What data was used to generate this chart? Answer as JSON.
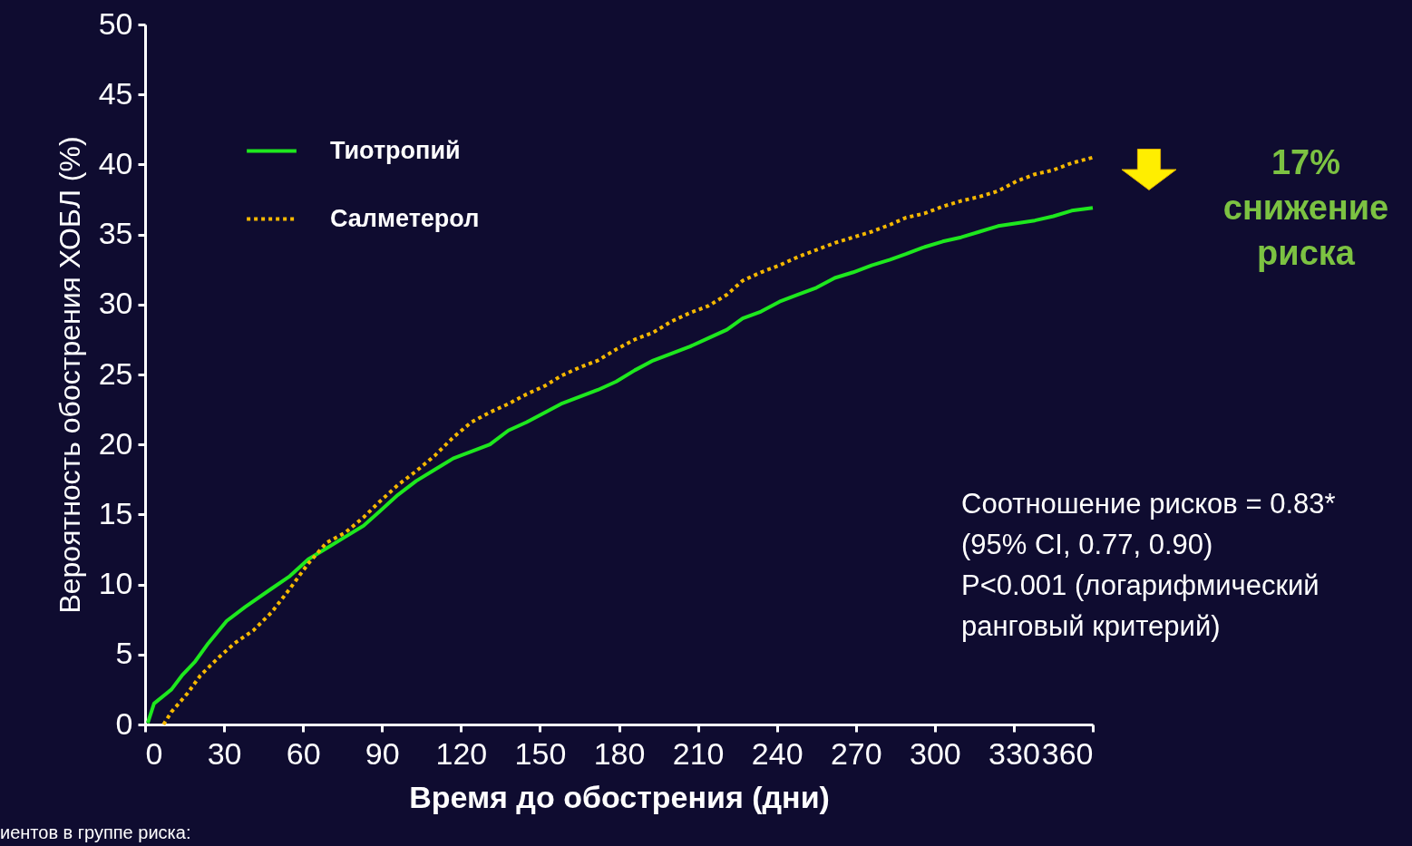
{
  "chart_data": {
    "type": "line",
    "xlabel": "Время до обострения (дни)",
    "ylabel": "Вероятность обострения ХОБЛ (%)",
    "xlim": [
      0,
      360
    ],
    "xticks": [
      0,
      30,
      60,
      90,
      120,
      150,
      180,
      210,
      240,
      270,
      300,
      330,
      360
    ],
    "ylim": [
      0,
      50
    ],
    "yticks": [
      0,
      5,
      10,
      15,
      20,
      25,
      30,
      35,
      40,
      45,
      50
    ],
    "grid": false,
    "legend": "top left",
    "marker": "none",
    "series": [
      {
        "name": "Тиотропий",
        "color": "#1ee81e",
        "line_style": "solid",
        "x": [
          1,
          3.4,
          10,
          14,
          19,
          24,
          31,
          38,
          48,
          55,
          62,
          69,
          76,
          83,
          89,
          96,
          103,
          110,
          117,
          124,
          131,
          138,
          145,
          152,
          158,
          165,
          172,
          179,
          186,
          193,
          200,
          207,
          214,
          221,
          227,
          234,
          241,
          248,
          255,
          262,
          269,
          276,
          283,
          289,
          296,
          303,
          310,
          317,
          324,
          331,
          338,
          345,
          352,
          360
        ],
        "values": [
          0.1,
          1.5,
          2.5,
          3.5,
          4.5,
          5.8,
          7.4,
          8.4,
          9.7,
          10.6,
          11.8,
          12.6,
          13.4,
          14.2,
          15.2,
          16.4,
          17.4,
          18.2,
          19.0,
          19.5,
          20.0,
          21.0,
          21.6,
          22.3,
          22.9,
          23.4,
          23.9,
          24.5,
          25.3,
          26.0,
          26.5,
          27.0,
          27.6,
          28.2,
          29.0,
          29.5,
          30.2,
          30.7,
          31.2,
          31.9,
          32.3,
          32.8,
          33.2,
          33.6,
          34.1,
          34.5,
          34.8,
          35.2,
          35.6,
          35.8,
          36.0,
          36.3,
          36.7,
          36.9
        ]
      },
      {
        "name": "Салметерол",
        "color": "#f5b800",
        "line_style": "dotted",
        "x": [
          7,
          10,
          16,
          21,
          28,
          34,
          41,
          48,
          55,
          62,
          69,
          76,
          83,
          89,
          96,
          103,
          110,
          117,
          124,
          131,
          138,
          145,
          152,
          158,
          165,
          172,
          179,
          186,
          193,
          200,
          207,
          214,
          221,
          227,
          234,
          241,
          248,
          255,
          262,
          269,
          276,
          283,
          289,
          296,
          303,
          310,
          317,
          324,
          331,
          338,
          345,
          352,
          360
        ],
        "values": [
          0,
          0.9,
          2.2,
          3.5,
          4.8,
          5.8,
          6.7,
          8.0,
          9.7,
          11.5,
          13.0,
          13.7,
          14.8,
          15.9,
          17.1,
          18.1,
          19.2,
          20.5,
          21.6,
          22.3,
          22.9,
          23.6,
          24.2,
          24.9,
          25.5,
          26.0,
          26.8,
          27.5,
          28.0,
          28.8,
          29.4,
          29.9,
          30.7,
          31.7,
          32.3,
          32.8,
          33.4,
          33.9,
          34.4,
          34.8,
          35.2,
          35.7,
          36.2,
          36.5,
          37.0,
          37.4,
          37.7,
          38.1,
          38.8,
          39.3,
          39.6,
          40.1,
          40.5
        ]
      }
    ],
    "annotations": [
      "17%\nснижение\nриска",
      "Соотношение рисков = 0.83*\n(95% CI, 0.77, 0.90)\nP<0.001 (логарифмический\nранговый критерий)",
      "иентов в группе риска:"
    ]
  }
}
